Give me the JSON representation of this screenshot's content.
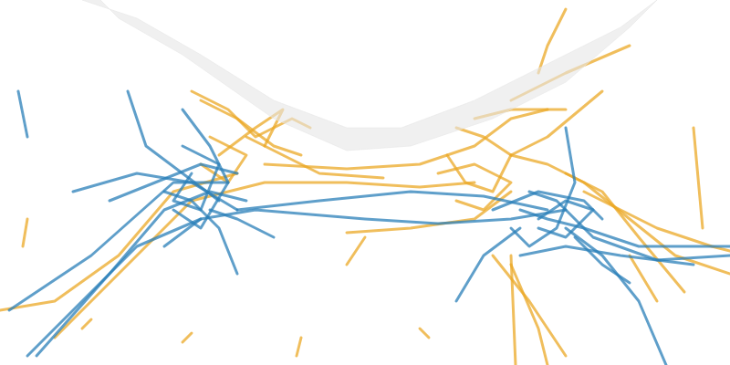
{
  "chart_data": {
    "type": "scatter",
    "tick_labels": false,
    "grid": false,
    "xlim": [
      0,
      800
    ],
    "ylim": [
      0,
      400
    ],
    "series": [
      {
        "type": "area",
        "color": "#e6e6e6",
        "x": [
          90,
          150,
          220,
          300,
          380,
          440,
          520,
          600,
          680,
          720,
          690,
          620,
          540,
          450,
          380,
          300,
          200,
          130,
          110
        ],
        "y": [
          400,
          380,
          340,
          290,
          260,
          260,
          290,
          330,
          370,
          400,
          370,
          310,
          270,
          240,
          235,
          270,
          340,
          380,
          400
        ]
      },
      {
        "color": "#2a7fb8",
        "x": [
          40,
          120,
          180,
          230,
          270
        ],
        "y": [
          10,
          100,
          170,
          190,
          180
        ]
      },
      {
        "color": "#2a7fb8",
        "x": [
          10,
          100,
          190,
          250
        ],
        "y": [
          60,
          120,
          200,
          200
        ]
      },
      {
        "color": "#2a7fb8",
        "x": [
          80,
          150,
          210,
          260
        ],
        "y": [
          190,
          210,
          200,
          170
        ]
      },
      {
        "color": "#2a7fb8",
        "x": [
          140,
          160,
          200,
          240
        ],
        "y": [
          300,
          240,
          210,
          180
        ]
      },
      {
        "color": "#2a7fb8",
        "x": [
          200,
          230,
          250,
          220,
          190
        ],
        "y": [
          280,
          240,
          200,
          150,
          170
        ]
      },
      {
        "color": "#2a7fb8",
        "x": [
          180,
          220,
          280,
          340,
          400,
          480,
          560,
          620
        ],
        "y": [
          130,
          160,
          170,
          165,
          160,
          155,
          160,
          170
        ]
      },
      {
        "color": "#2a7fb8",
        "x": [
          260,
          240,
          210,
          180
        ],
        "y": [
          100,
          150,
          180,
          190
        ]
      },
      {
        "color": "#2a7fb8",
        "x": [
          30,
          90,
          150,
          220
        ],
        "y": [
          10,
          70,
          130,
          160
        ]
      },
      {
        "color": "#2a7fb8",
        "x": [
          800,
          700,
          640,
          600,
          570
        ],
        "y": [
          130,
          130,
          150,
          160,
          170
        ]
      },
      {
        "color": "#2a7fb8",
        "x": [
          800,
          720,
          650,
          610,
          580
        ],
        "y": [
          120,
          115,
          140,
          180,
          190
        ]
      },
      {
        "color": "#2a7fb8",
        "x": [
          730,
          700,
          660,
          620
        ],
        "y": [
          0,
          70,
          120,
          150
        ]
      },
      {
        "color": "#2a7fb8",
        "x": [
          620,
          630,
          610,
          580,
          560
        ],
        "y": [
          260,
          200,
          150,
          130,
          150
        ]
      },
      {
        "color": "#2a7fb8",
        "x": [
          540,
          590,
          640,
          660
        ],
        "y": [
          170,
          190,
          180,
          160
        ]
      },
      {
        "color": "#2a7fb8",
        "x": [
          760,
          680,
          620,
          570
        ],
        "y": [
          110,
          120,
          130,
          120
        ]
      },
      {
        "color": "#2a7fb8",
        "x": [
          690,
          660,
          630
        ],
        "y": [
          90,
          110,
          140
        ]
      },
      {
        "color": "#2a7fb8",
        "x": [
          500,
          530,
          570
        ],
        "y": [
          70,
          120,
          150
        ]
      },
      {
        "color": "#2a7fb8",
        "x": [
          20,
          30
        ],
        "y": [
          300,
          250
        ]
      },
      {
        "color": "#2a7fb8",
        "x": [
          300,
          260,
          230
        ],
        "y": [
          140,
          160,
          170
        ]
      },
      {
        "color": "#2a7fb8",
        "x": [
          120,
          170,
          220,
          260
        ],
        "y": [
          180,
          200,
          220,
          210
        ]
      },
      {
        "color": "#2a7fb8",
        "x": [
          200,
          240,
          220,
          190,
          210
        ],
        "y": [
          240,
          220,
          170,
          180,
          210
        ]
      },
      {
        "color": "#2a7fb8",
        "x": [
          260,
          350,
          450,
          530,
          600
        ],
        "y": [
          170,
          180,
          190,
          185,
          170
        ]
      },
      {
        "color": "#2a7fb8",
        "x": [
          590,
          620,
          650,
          620,
          590
        ],
        "y": [
          160,
          180,
          170,
          140,
          150
        ]
      },
      {
        "color": "#eba825",
        "x": [
          0,
          60,
          130,
          190,
          260
        ],
        "y": [
          60,
          70,
          120,
          190,
          210
        ]
      },
      {
        "color": "#eba825",
        "x": [
          60,
          140,
          210,
          290,
          380,
          460,
          520
        ],
        "y": [
          30,
          110,
          180,
          200,
          200,
          195,
          200
        ]
      },
      {
        "color": "#eba825",
        "x": [
          220,
          260,
          300,
          330
        ],
        "y": [
          290,
          270,
          240,
          230
        ]
      },
      {
        "color": "#eba825",
        "x": [
          210,
          250,
          280,
          320,
          340
        ],
        "y": [
          300,
          280,
          250,
          270,
          260
        ]
      },
      {
        "color": "#eba825",
        "x": [
          290,
          380,
          460,
          520,
          560,
          600
        ],
        "y": [
          220,
          215,
          220,
          240,
          270,
          280
        ]
      },
      {
        "color": "#eba825",
        "x": [
          800,
          740,
          690,
          640,
          600,
          560
        ],
        "y": [
          100,
          120,
          160,
          200,
          220,
          230
        ]
      },
      {
        "color": "#eba825",
        "x": [
          750,
          700,
          660,
          620
        ],
        "y": [
          80,
          140,
          190,
          210
        ]
      },
      {
        "color": "#eba825",
        "x": [
          560,
          590,
          600
        ],
        "y": [
          110,
          40,
          0
        ]
      },
      {
        "color": "#eba825",
        "x": [
          560,
          565
        ],
        "y": [
          120,
          0
        ]
      },
      {
        "color": "#eba825",
        "x": [
          540,
          580,
          620
        ],
        "y": [
          120,
          70,
          10
        ]
      },
      {
        "color": "#eba825",
        "x": [
          660,
          600,
          560
        ],
        "y": [
          300,
          250,
          230
        ]
      },
      {
        "color": "#eba825",
        "x": [
          620,
          600,
          590
        ],
        "y": [
          390,
          350,
          320
        ]
      },
      {
        "color": "#eba825",
        "x": [
          560,
          620,
          690
        ],
        "y": [
          290,
          320,
          350
        ]
      },
      {
        "color": "#eba825",
        "x": [
          520,
          560,
          620
        ],
        "y": [
          270,
          280,
          280
        ]
      },
      {
        "color": "#eba825",
        "x": [
          500,
          530,
          560,
          540,
          510,
          490
        ],
        "y": [
          260,
          250,
          230,
          190,
          200,
          230
        ]
      },
      {
        "color": "#eba825",
        "x": [
          480,
          520,
          560,
          530,
          500
        ],
        "y": [
          210,
          220,
          200,
          170,
          180
        ]
      },
      {
        "color": "#eba825",
        "x": [
          760,
          770
        ],
        "y": [
          260,
          150
        ]
      },
      {
        "color": "#eba825",
        "x": [
          400,
          380
        ],
        "y": [
          140,
          110
        ]
      },
      {
        "color": "#eba825",
        "x": [
          690,
          720
        ],
        "y": [
          120,
          70
        ]
      },
      {
        "color": "#eba825",
        "x": [
          270,
          310,
          350,
          420
        ],
        "y": [
          250,
          230,
          210,
          205
        ]
      },
      {
        "color": "#eba825",
        "x": [
          380,
          450,
          520,
          560
        ],
        "y": [
          145,
          150,
          160,
          190
        ]
      },
      {
        "color": "#eba825",
        "x": [
          30,
          25
        ],
        "y": [
          160,
          130
        ]
      },
      {
        "color": "#eba825",
        "x": [
          90,
          100
        ],
        "y": [
          40,
          50
        ]
      },
      {
        "color": "#eba825",
        "x": [
          330,
          325
        ],
        "y": [
          30,
          10
        ]
      },
      {
        "color": "#eba825",
        "x": [
          200,
          210
        ],
        "y": [
          25,
          35
        ]
      },
      {
        "color": "#eba825",
        "x": [
          460,
          470
        ],
        "y": [
          40,
          30
        ]
      },
      {
        "color": "#eba825",
        "x": [
          640,
          720,
          780,
          800
        ],
        "y": [
          190,
          150,
          130,
          125
        ]
      },
      {
        "color": "#eba825",
        "x": [
          240,
          280,
          310,
          290
        ],
        "y": [
          230,
          260,
          280,
          240
        ]
      },
      {
        "color": "#eba825",
        "x": [
          230,
          270,
          250,
          220
        ],
        "y": [
          250,
          230,
          200,
          220
        ]
      }
    ]
  }
}
